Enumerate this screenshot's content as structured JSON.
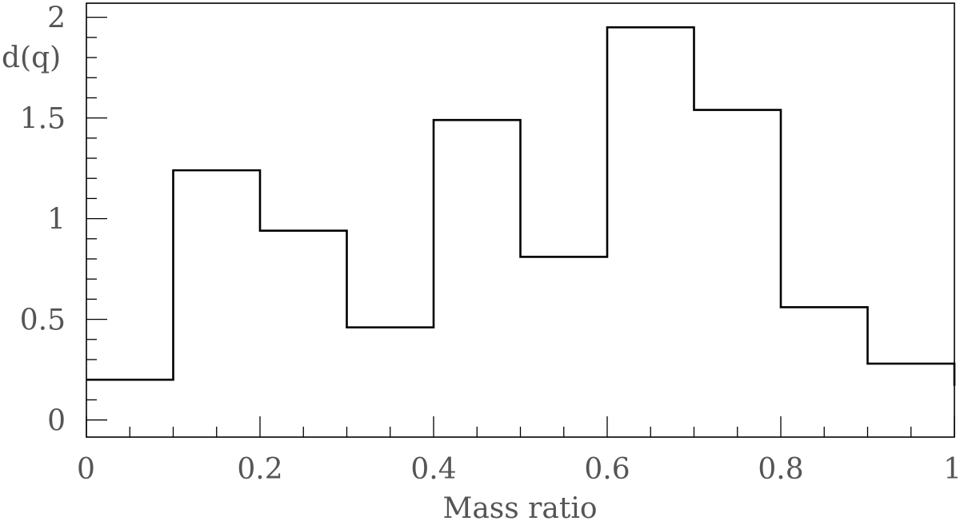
{
  "chart_data": {
    "type": "histogram",
    "xlabel": "Mass ratio",
    "ylabel": "d(q)",
    "xlim": [
      0,
      1
    ],
    "ylim": [
      -0.085,
      2.07
    ],
    "bin_edges": [
      0,
      0.1,
      0.2,
      0.3,
      0.4,
      0.5,
      0.6,
      0.7,
      0.8,
      0.9,
      1.0
    ],
    "values": [
      0.2,
      1.24,
      0.94,
      0.46,
      1.49,
      0.81,
      1.95,
      1.54,
      0.56,
      0.28
    ],
    "last_bin_end_value": 0.17,
    "x_ticks_major": [
      0,
      0.2,
      0.4,
      0.6,
      0.8,
      1
    ],
    "x_tick_labels": [
      "0",
      "0.2",
      "0.4",
      "0.6",
      "0.8",
      "1"
    ],
    "x_ticks_minor_step": 0.05,
    "y_ticks_major": [
      0,
      0.5,
      1,
      1.5,
      2
    ],
    "y_tick_labels": [
      "0",
      "0.5",
      "1",
      "1.5",
      "2"
    ],
    "y_ticks_minor_step": 0.1,
    "grid": false,
    "legend": "none"
  }
}
